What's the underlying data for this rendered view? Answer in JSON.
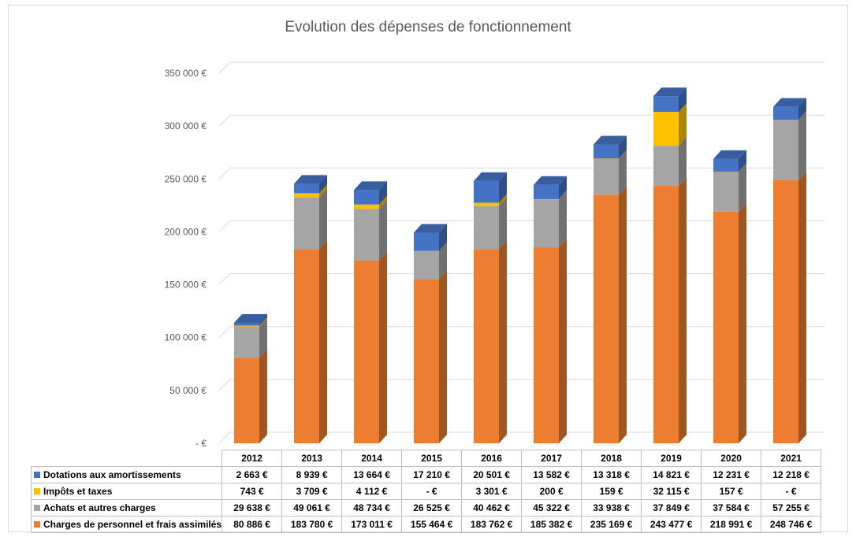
{
  "chart_data": {
    "type": "bar",
    "stacked": true,
    "three_d": true,
    "title": "Evolution des dépenses de fonctionnement",
    "categories": [
      "2012",
      "2013",
      "2014",
      "2015",
      "2016",
      "2017",
      "2018",
      "2019",
      "2020",
      "2021"
    ],
    "y_ticks": [
      "350 000 €",
      "300 000 €",
      "250 000 €",
      "200 000 €",
      "150 000 €",
      "100 000 €",
      "50 000 €",
      "-   €"
    ],
    "ylim": [
      0,
      350000
    ],
    "grid": true,
    "legend": "data-table",
    "series": [
      {
        "name": "Charges de personnel et frais assimilés",
        "color": "#ed7d31",
        "values": [
          80886,
          183780,
          173011,
          155464,
          183762,
          185382,
          235169,
          243477,
          218991,
          248746
        ],
        "labels": [
          "80 886 €",
          "183 780 €",
          "173 011 €",
          "155 464 €",
          "183 762 €",
          "185 382 €",
          "235 169 €",
          "243 477 €",
          "218 991 €",
          "248 746 €"
        ]
      },
      {
        "name": "Achats et autres charges",
        "color": "#a5a5a5",
        "values": [
          29638,
          49061,
          48734,
          26525,
          40462,
          45322,
          33938,
          37849,
          37584,
          57255
        ],
        "labels": [
          "29 638 €",
          "49 061 €",
          "48 734 €",
          "26 525 €",
          "40 462 €",
          "45 322 €",
          "33 938 €",
          "37 849 €",
          "37 584 €",
          "57 255 €"
        ]
      },
      {
        "name": "Impôts et taxes",
        "color": "#ffc000",
        "values": [
          743,
          3709,
          4112,
          0,
          3301,
          200,
          159,
          32115,
          157,
          0
        ],
        "labels": [
          "743 €",
          "3 709 €",
          "4 112 €",
          "-   €",
          "3 301 €",
          "200 €",
          "159 €",
          "32 115 €",
          "157 €",
          "-   €"
        ]
      },
      {
        "name": "Dotations aux amortissements",
        "color": "#4472c4",
        "values": [
          2663,
          8939,
          13664,
          17210,
          20501,
          13582,
          13318,
          14821,
          12231,
          12218
        ],
        "labels": [
          "2 663 €",
          "8 939 €",
          "13 664 €",
          "17 210 €",
          "20 501 €",
          "13 582 €",
          "13 318 €",
          "14 821 €",
          "12 231 €",
          "12 218 €"
        ]
      }
    ],
    "table_row_order": [
      "Dotations aux amortissements",
      "Impôts et taxes",
      "Achats et autres charges",
      "Charges de personnel et frais assimilés"
    ]
  }
}
